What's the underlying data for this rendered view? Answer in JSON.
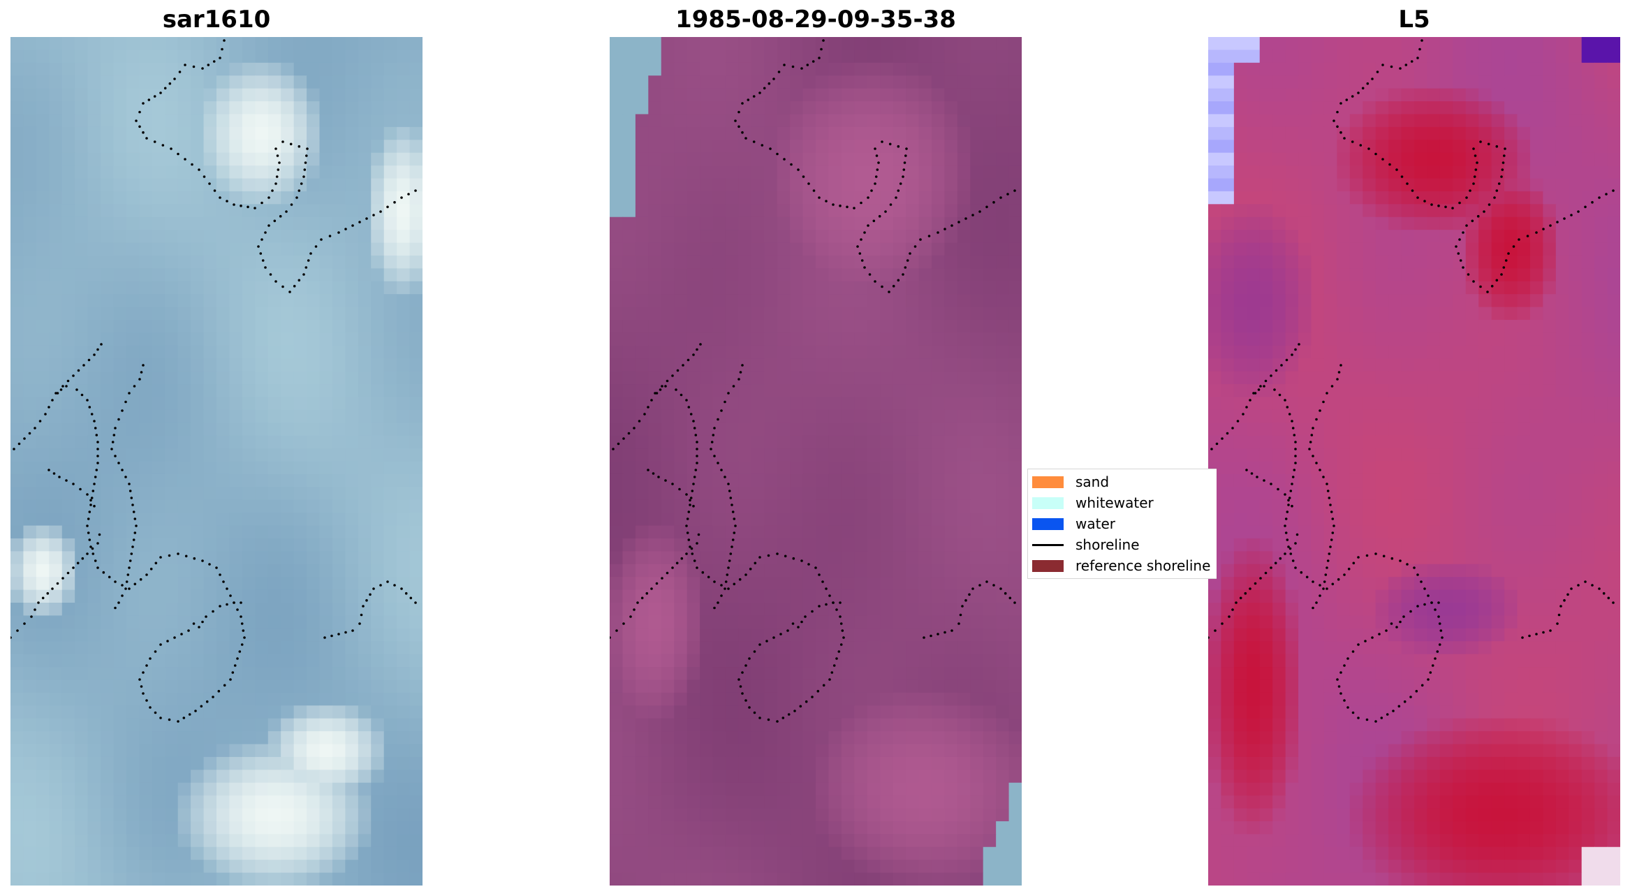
{
  "panels": [
    {
      "title": "sar1610",
      "style": "rgb-blue"
    },
    {
      "title": "1985-08-29-09-35-38",
      "style": "purple"
    },
    {
      "title": "L5",
      "style": "red-purple"
    }
  ],
  "legend": {
    "items": [
      {
        "label": "sand",
        "color": "#ff8c3c",
        "kind": "patch"
      },
      {
        "label": "whitewater",
        "color": "#c8fff8",
        "kind": "patch"
      },
      {
        "label": "water",
        "color": "#0a55f0",
        "kind": "patch"
      },
      {
        "label": "shoreline",
        "color": "#000000",
        "kind": "line"
      },
      {
        "label": "reference shoreline",
        "color": "#8b2b31",
        "kind": "patch"
      }
    ]
  },
  "colors": {
    "shoreline_dots": "#000000",
    "panel1_base": "#8db3c8",
    "panel2_base": "#874478",
    "panel3_base": "#c2426f"
  }
}
